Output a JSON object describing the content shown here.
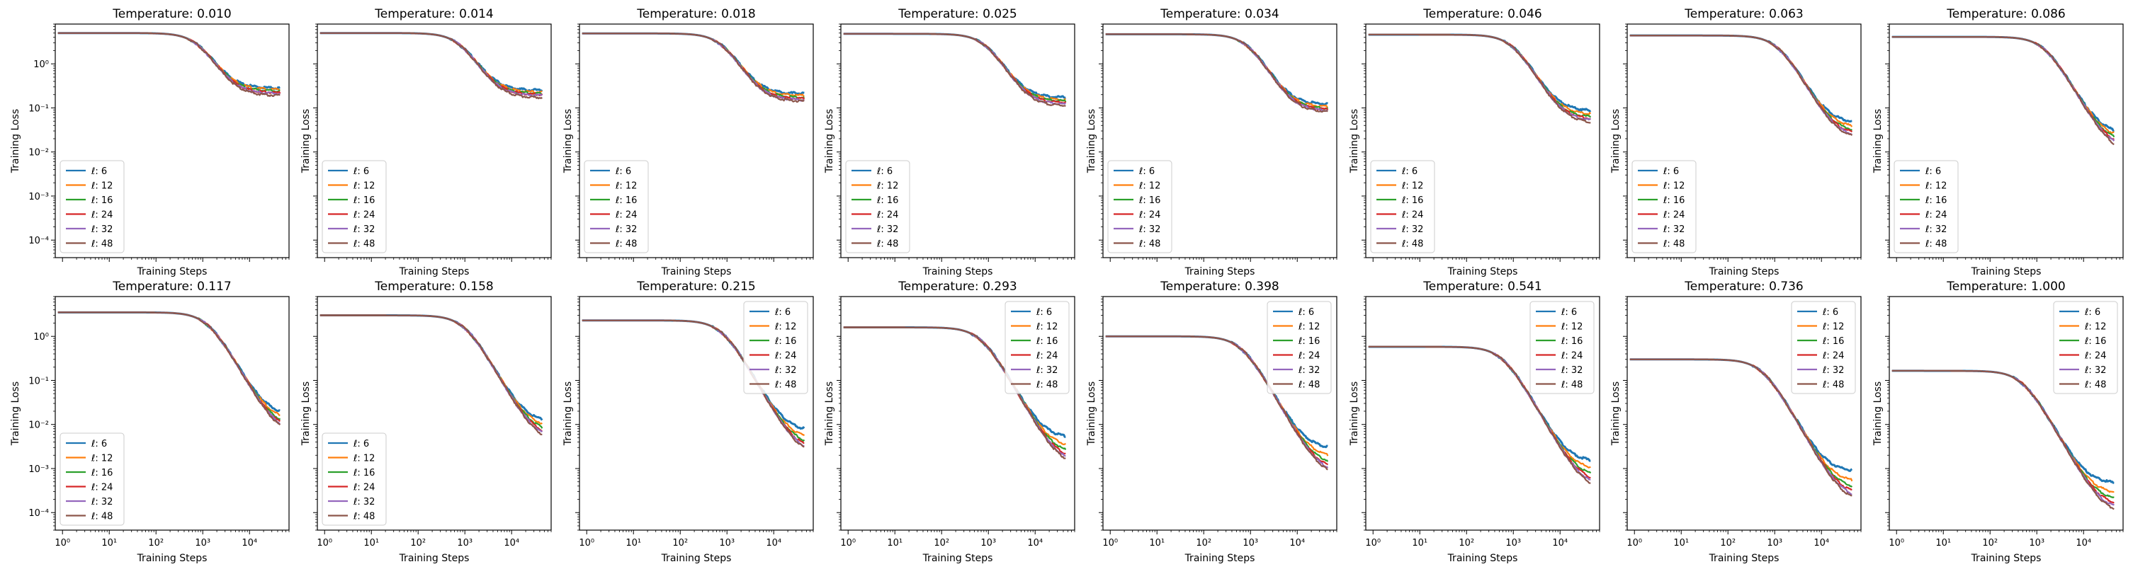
{
  "figure": {
    "title_prefix": "Temperature: ",
    "xlabel": "Training Steps",
    "ylabel": "Training Loss",
    "legend_prefix": "ℓ: "
  },
  "chart_data": {
    "type": "line",
    "layout": "2 rows x 8 columns, shared axes",
    "xscale": "log",
    "yscale": "log",
    "xlim": [
      0.7,
      70000
    ],
    "ylim": [
      4e-05,
      8
    ],
    "x_ticks": [
      1,
      10,
      100,
      1000,
      10000
    ],
    "x_tick_labels": [
      "10⁰",
      "10¹",
      "10²",
      "10³",
      "10⁴"
    ],
    "y_ticks": [
      0.0001,
      0.001,
      0.01,
      0.1,
      1
    ],
    "y_tick_labels": [
      "10⁻⁴",
      "10⁻³",
      "10⁻²",
      "10⁻¹",
      "10⁰"
    ],
    "x_tick_labels_on": "bottom row only",
    "y_tick_labels_on": "left column only",
    "series": [
      {
        "name": "ℓ: 6",
        "color": "#1f77b4"
      },
      {
        "name": "ℓ: 12",
        "color": "#ff7f0e"
      },
      {
        "name": "ℓ: 16",
        "color": "#2ca02c"
      },
      {
        "name": "ℓ: 24",
        "color": "#d62728"
      },
      {
        "name": "ℓ: 32",
        "color": "#9467bd"
      },
      {
        "name": "ℓ: 48",
        "color": "#8c564b"
      }
    ],
    "panels": [
      {
        "temperature": "0.010",
        "legend": "lower-left",
        "start": 5.0,
        "mid": 800,
        "final": [
          0.28,
          0.26,
          0.24,
          0.22,
          0.21,
          0.19
        ]
      },
      {
        "temperature": "0.014",
        "legend": "lower-left",
        "start": 5.0,
        "mid": 800,
        "final": [
          0.25,
          0.23,
          0.21,
          0.2,
          0.19,
          0.17
        ]
      },
      {
        "temperature": "0.018",
        "legend": "lower-left",
        "start": 4.9,
        "mid": 800,
        "final": [
          0.21,
          0.19,
          0.17,
          0.16,
          0.15,
          0.14
        ]
      },
      {
        "temperature": "0.025",
        "legend": "lower-left",
        "start": 4.8,
        "mid": 900,
        "final": [
          0.17,
          0.15,
          0.14,
          0.13,
          0.12,
          0.11
        ]
      },
      {
        "temperature": "0.034",
        "legend": "lower-left",
        "start": 4.7,
        "mid": 900,
        "final": [
          0.12,
          0.105,
          0.095,
          0.09,
          0.085,
          0.08
        ]
      },
      {
        "temperature": "0.046",
        "legend": "lower-left",
        "start": 4.6,
        "mid": 1000,
        "final": [
          0.085,
          0.07,
          0.06,
          0.055,
          0.05,
          0.045
        ]
      },
      {
        "temperature": "0.063",
        "legend": "lower-left",
        "start": 4.4,
        "mid": 1200,
        "final": [
          0.045,
          0.035,
          0.028,
          0.024,
          0.021,
          0.019
        ]
      },
      {
        "temperature": "0.086",
        "legend": "lower-left",
        "start": 4.1,
        "mid": 1500,
        "final": [
          0.025,
          0.02,
          0.016,
          0.013,
          0.011,
          0.009
        ]
      },
      {
        "temperature": "0.117",
        "legend": "lower-left",
        "start": 3.5,
        "mid": 1300,
        "final": [
          0.016,
          0.012,
          0.009,
          0.0075,
          0.0065,
          0.0055
        ]
      },
      {
        "temperature": "0.158",
        "legend": "lower-left",
        "start": 3.0,
        "mid": 1000,
        "final": [
          0.011,
          0.0085,
          0.0065,
          0.0052,
          0.0045,
          0.0038
        ]
      },
      {
        "temperature": "0.215",
        "legend": "upper-right",
        "start": 2.3,
        "mid": 800,
        "final": [
          0.007,
          0.0045,
          0.0033,
          0.0026,
          0.0022,
          0.0019
        ]
      },
      {
        "temperature": "0.293",
        "legend": "upper-right",
        "start": 1.6,
        "mid": 700,
        "final": [
          0.0048,
          0.003,
          0.0021,
          0.0016,
          0.0013,
          0.0011
        ]
      },
      {
        "temperature": "0.398",
        "legend": "upper-right",
        "start": 1.0,
        "mid": 650,
        "final": [
          0.0028,
          0.0017,
          0.0012,
          0.0009,
          0.00075,
          0.00062
        ]
      },
      {
        "temperature": "0.541",
        "legend": "upper-right",
        "start": 0.58,
        "mid": 600,
        "final": [
          0.0014,
          0.0009,
          0.00062,
          0.00048,
          0.00038,
          0.00031
        ]
      },
      {
        "temperature": "0.736",
        "legend": "upper-right",
        "start": 0.3,
        "mid": 550,
        "final": [
          0.00085,
          0.00048,
          0.00033,
          0.00025,
          0.0002,
          0.00016
        ]
      },
      {
        "temperature": "1.000",
        "legend": "upper-right",
        "start": 0.165,
        "mid": 500,
        "final": [
          0.00045,
          0.00026,
          0.00018,
          0.00014,
          0.00011,
          9e-05
        ]
      }
    ]
  }
}
